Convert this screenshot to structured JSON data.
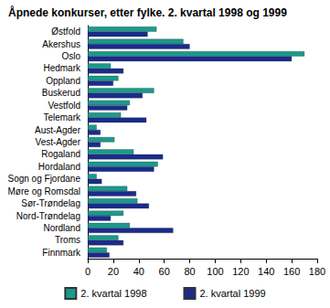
{
  "chart_data": {
    "type": "bar",
    "orientation": "horizontal",
    "title": "Åpnede konkurser, etter fylke. 2. kvartal 1998 og 1999",
    "categories": [
      "Østfold",
      "Akershus",
      "Oslo",
      "Hedmark",
      "Oppland",
      "Buskerud",
      "Vestfold",
      "Telemark",
      "Aust-Agder",
      "Vest-Agder",
      "Rogaland",
      "Hordaland",
      "Sogn og Fjordane",
      "Møre og Romsdal",
      "Sør-Trøndelag",
      "Nord-Trøndelag",
      "Nordland",
      "Troms",
      "Finnmark"
    ],
    "series": [
      {
        "name": "2. kvartal 1998",
        "color": "#1a9a8c",
        "values": [
          54,
          75,
          170,
          18,
          24,
          52,
          33,
          26,
          7,
          21,
          36,
          55,
          7,
          31,
          39,
          28,
          33,
          24,
          15
        ]
      },
      {
        "name": "2. kvartal 1999",
        "color": "#1a2b8c",
        "values": [
          47,
          80,
          160,
          28,
          20,
          43,
          31,
          46,
          10,
          10,
          59,
          52,
          11,
          38,
          48,
          18,
          67,
          28,
          17
        ]
      }
    ],
    "xlim": [
      0,
      180
    ],
    "xticks": [
      0,
      20,
      40,
      60,
      80,
      100,
      120,
      140,
      160,
      180
    ],
    "grid": false,
    "legend": "bottom"
  }
}
